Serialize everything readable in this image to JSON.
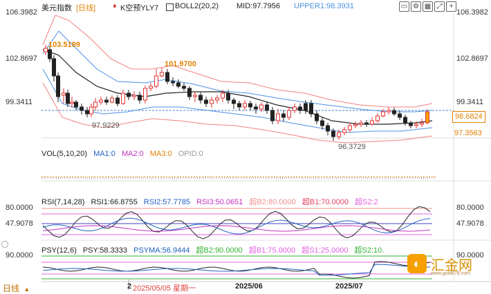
{
  "header": {
    "symbol": "美元指数",
    "period_badge": "[日线]",
    "strategy_label": "K空预YLY7",
    "boll_label": "BOLL2(20,2)",
    "mid_label": "MID:97.7956",
    "upper_label": "UPPER1:98.3931",
    "tool_icons": [
      "window-icon",
      "settings-icon",
      "layout-icon",
      "expand-icon",
      "plus-icon"
    ]
  },
  "price_axis": {
    "right_ticks": [
      "106.3982",
      "102.8697",
      "99.3411"
    ],
    "left_ticks": [
      "106.3982",
      "102.8697",
      "99.3411"
    ],
    "current_price": "98.6824",
    "lower_price": "97.3563"
  },
  "annotations": {
    "high1": "103.5199",
    "high2": "101.9700",
    "low1": "97.9229",
    "low2": "96.3729"
  },
  "vol": {
    "title": "VOL(5,10,20)",
    "ma1": "MA1:0",
    "ma2": "MA2:0",
    "ma3": "MA3:0",
    "opid": "OPID:0"
  },
  "rsi": {
    "title": "RSI(7,14,28)",
    "rsi1": "RSI1:66.8755",
    "rsi2": "RSI2:57.7785",
    "rsi3": "RSI3:50.0651",
    "ob2": "超B2:80.0000",
    "ob1": "超B1:70.0000",
    "os2": "超S2:2",
    "left_ticks": [
      "80.0000",
      "47.9078"
    ],
    "right_ticks": [
      "80.0000",
      "47.9078"
    ]
  },
  "psy": {
    "title": "PSY(12,6)",
    "psy": "PSY:58.3333",
    "psyma": "PSYMA:56.9444",
    "b2": "超B2:90.0000",
    "b1": "超B1:75.0000",
    "s1": "超S1:25.0000",
    "s2": "超S2:10.",
    "left_tick": "90.0000",
    "right_tick": "90.0000"
  },
  "time_axis": {
    "cursor_date": "2025/05/05 星期一",
    "cursor_prefix": "2",
    "labels": [
      "2025/06",
      "2025/07"
    ]
  },
  "bottom_tab": {
    "label": "日线",
    "arrow": "▲"
  },
  "logo": {
    "text": "汇金网",
    "subtext": "www.gold678.com"
  },
  "colors": {
    "up": "#e03030",
    "down": "#222222",
    "mid": "#222222",
    "upper": "#f08080",
    "inner": "#4a90e2",
    "rsi1": "#222222",
    "rsi2": "#2060c0",
    "rsi3": "#c030c0",
    "accent": "#f5a000"
  }
}
